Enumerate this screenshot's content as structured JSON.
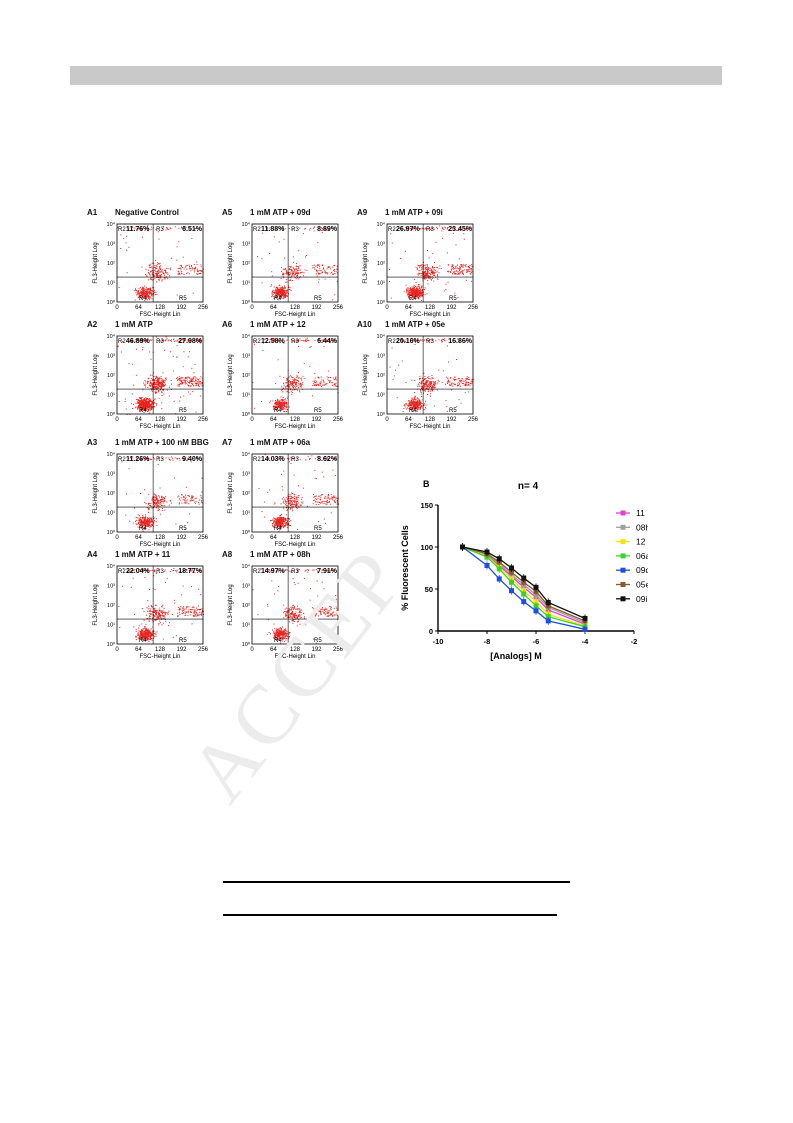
{
  "page": {
    "header_bar_color": "#c9c9c9",
    "watermark": "ACCEP"
  },
  "flow_panels": [
    {
      "id": "A1",
      "title": "Negative Control",
      "r2": "11.76%",
      "r3": "6.51%"
    },
    {
      "id": "A5",
      "title": "1 mM ATP + 09d",
      "r2": "11.88%",
      "r3": "8.89%"
    },
    {
      "id": "A9",
      "title": "1 mM ATP + 09i",
      "r2": "26.97%",
      "r3": "23.45%"
    },
    {
      "id": "A2",
      "title": "1 mM ATP",
      "r2": "46.89%",
      "r3": "27.98%"
    },
    {
      "id": "A6",
      "title": "1 mM ATP + 12",
      "r2": "12.58%",
      "r3": "6.44%"
    },
    {
      "id": "A10",
      "title": "1 mM ATP + 05e",
      "r2": "20.16%",
      "r3": "16.86%"
    },
    {
      "id": "A3",
      "title": "1 mM ATP + 100 nM BBG",
      "r2": "11.26%",
      "r3": "9.40%"
    },
    {
      "id": "A7",
      "title": "1 mM ATP + 06a",
      "r2": "14.03%",
      "r3": "8.62%"
    },
    {
      "id": "A4",
      "title": "1 mM ATP + 11",
      "r2": "22.04%",
      "r3": "18.77%"
    },
    {
      "id": "A8",
      "title": "1 mM ATP + 08h",
      "r2": "14.97%",
      "r3": "7.91%"
    }
  ],
  "flow_axes": {
    "ylabel": "FL3-Height Log",
    "xlabel": "FSC-Height Lin",
    "xticks": [
      "0",
      "64",
      "128",
      "192",
      "256"
    ],
    "yticks": [
      "10⁰",
      "10¹",
      "10²",
      "10³",
      "10⁴"
    ],
    "regions": {
      "r2": "R2",
      "r3": "R3",
      "r4": "R4",
      "r5": "R5"
    },
    "dot_color": "#e8231f"
  },
  "chart_data": {
    "type": "line",
    "panel_label": "B",
    "title": "n= 4",
    "xlabel": "[Analogs] M",
    "ylabel": "% Fluorescent Cells",
    "xlim": [
      -10,
      -2
    ],
    "ylim": [
      0,
      150
    ],
    "xticks": [
      "-10",
      "-8",
      "-6",
      "-4",
      "-2"
    ],
    "yticks": [
      "0",
      "50",
      "100",
      "150"
    ],
    "legend_position": "right",
    "x": [
      -9,
      -8,
      -7.5,
      -7,
      -6.5,
      -6,
      -5.5,
      -4
    ],
    "series": [
      {
        "name": "11",
        "color": "#e040d0",
        "values": [
          100,
          90,
          78,
          65,
          52,
          40,
          25,
          8
        ]
      },
      {
        "name": "08h",
        "color": "#a0a0a0",
        "values": [
          100,
          91,
          80,
          67,
          55,
          43,
          28,
          10
        ]
      },
      {
        "name": "12",
        "color": "#f2e40c",
        "values": [
          100,
          89,
          76,
          62,
          48,
          35,
          20,
          6
        ]
      },
      {
        "name": "06a",
        "color": "#39d12c",
        "values": [
          100,
          88,
          74,
          58,
          44,
          30,
          17,
          5
        ]
      },
      {
        "name": "09d",
        "color": "#1f4fe0",
        "values": [
          100,
          78,
          62,
          48,
          35,
          24,
          12,
          2
        ]
      },
      {
        "name": "05e",
        "color": "#8b5a2b",
        "values": [
          100,
          92,
          82,
          70,
          58,
          47,
          30,
          12
        ]
      },
      {
        "name": "09i",
        "color": "#111111",
        "values": [
          100,
          94,
          86,
          75,
          63,
          52,
          34,
          15
        ]
      }
    ]
  }
}
